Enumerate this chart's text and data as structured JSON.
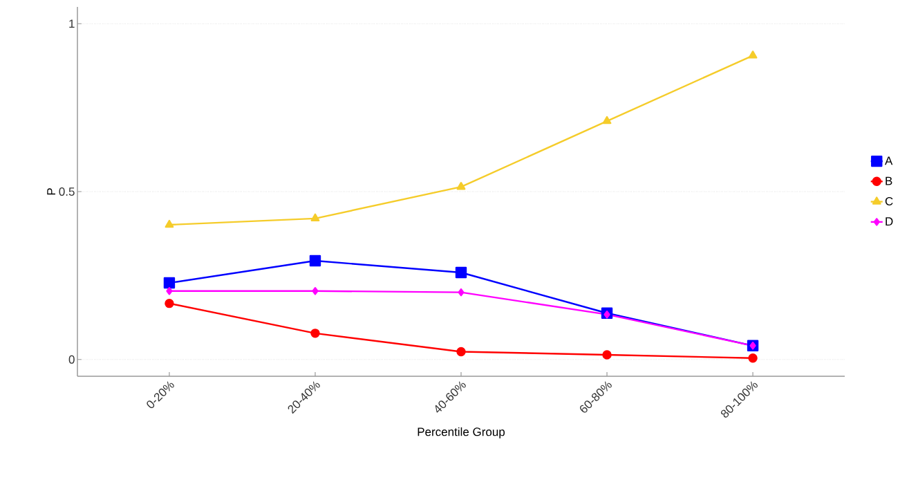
{
  "chart_data": {
    "type": "line",
    "xlabel": "Percentile Group",
    "ylabel": "P",
    "categories": [
      "0-20%",
      "20-40%",
      "40-60%",
      "60-80%",
      "80-100%"
    ],
    "series": [
      {
        "name": "A",
        "color": "#0000ff",
        "marker": "square",
        "values": [
          0.228,
          0.294,
          0.259,
          0.138,
          0.041
        ]
      },
      {
        "name": "B",
        "color": "#ff0000",
        "marker": "circle",
        "values": [
          0.167,
          0.078,
          0.023,
          0.014,
          0.004
        ]
      },
      {
        "name": "C",
        "color": "#f5cc2a",
        "marker": "triangle",
        "values": [
          0.401,
          0.42,
          0.514,
          0.71,
          0.905
        ]
      },
      {
        "name": "D",
        "color": "#ff00ff",
        "marker": "diamond",
        "values": [
          0.204,
          0.204,
          0.2,
          0.134,
          0.041
        ]
      }
    ],
    "ylim": [
      -0.05,
      1.05
    ],
    "yticks": [
      0,
      0.5,
      1
    ],
    "grid": "y",
    "legend": "right",
    "line_style": "solid"
  }
}
